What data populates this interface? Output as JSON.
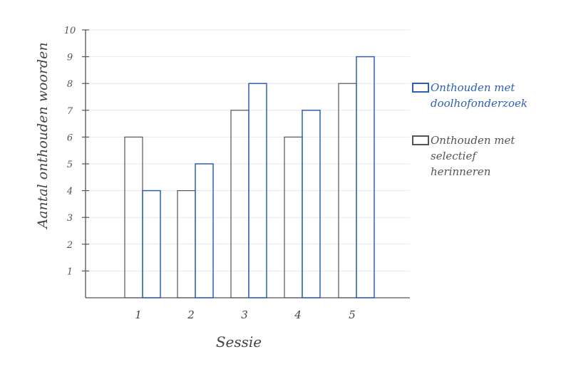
{
  "chart_data": {
    "type": "bar",
    "categories": [
      "1",
      "2",
      "3",
      "4",
      "5"
    ],
    "series": [
      {
        "name": "Onthouden met selectief herinneren",
        "values": [
          6,
          4,
          7,
          6,
          8
        ],
        "color": "#555555"
      },
      {
        "name": "Onthouden met doolhofonderzoek",
        "values": [
          4,
          5,
          8,
          7,
          9
        ],
        "color": "#2f5fb3"
      }
    ],
    "xlabel": "Sessie",
    "ylabel": "Aantal onthouden woorden",
    "ylim": [
      0,
      10
    ],
    "yticks": [
      "1",
      "2",
      "3",
      "4",
      "5",
      "6",
      "7",
      "8",
      "9",
      "10"
    ],
    "grid": true,
    "legend": "right"
  },
  "legend": {
    "blue_text": "Onthouden met\ndoolhofonderzoek",
    "gray_text": "Onthouden met\nselectief\nherinneren"
  }
}
